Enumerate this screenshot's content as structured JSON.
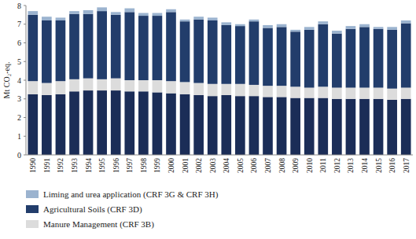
{
  "chart_data": {
    "type": "bar",
    "stacked": true,
    "grid": false,
    "legend": "bottom-left",
    "y_label": "Mt CO₂-eq.",
    "categories": [
      "1990",
      "1991",
      "1992",
      "1993",
      "1994",
      "1995",
      "1996",
      "1997",
      "1998",
      "1999",
      "2000",
      "2001",
      "2002",
      "2003",
      "2004",
      "2005",
      "2006",
      "2007",
      "2008",
      "2009",
      "2010",
      "2011",
      "2012",
      "2013",
      "2014",
      "2015",
      "2016",
      "2017"
    ],
    "ylim": [
      0,
      8
    ],
    "yticks": [
      0,
      1,
      2,
      3,
      4,
      5,
      6,
      7,
      8
    ],
    "series": [
      {
        "color": "#1b2d57",
        "values": [
          3.25,
          3.2,
          3.25,
          3.4,
          3.45,
          3.45,
          3.45,
          3.4,
          3.4,
          3.35,
          3.3,
          3.25,
          3.2,
          3.15,
          3.2,
          3.15,
          3.15,
          3.1,
          3.1,
          3.05,
          3.05,
          3.05,
          3.0,
          3.0,
          3.0,
          3.0,
          2.95,
          3.0
        ]
      },
      {
        "name": "Manure Management (CRF 3B)",
        "color": "#dcdcdc",
        "values": [
          0.7,
          0.65,
          0.7,
          0.65,
          0.65,
          0.6,
          0.65,
          0.6,
          0.6,
          0.65,
          0.65,
          0.65,
          0.65,
          0.65,
          0.6,
          0.65,
          0.6,
          0.6,
          0.6,
          0.6,
          0.55,
          0.6,
          0.6,
          0.6,
          0.6,
          0.6,
          0.6,
          0.6
        ]
      },
      {
        "name": "Agricultural Soils (CRF 3D)",
        "color": "#223d6b",
        "values": [
          3.55,
          3.35,
          3.25,
          3.5,
          3.45,
          3.65,
          3.4,
          3.65,
          3.45,
          3.45,
          3.7,
          3.25,
          3.4,
          3.4,
          3.15,
          3.1,
          3.4,
          3.1,
          3.15,
          2.95,
          3.1,
          3.35,
          2.9,
          3.15,
          3.25,
          3.15,
          3.15,
          3.45
        ]
      },
      {
        "name": "Liming and urea application (CRF 3G & CRF 3H)",
        "color": "#9bb3cf",
        "values": [
          0.2,
          0.2,
          0.15,
          0.15,
          0.2,
          0.2,
          0.15,
          0.2,
          0.15,
          0.15,
          0.15,
          0.1,
          0.15,
          0.15,
          0.15,
          0.1,
          0.1,
          0.15,
          0.15,
          0.1,
          0.15,
          0.15,
          0.15,
          0.15,
          0.15,
          0.1,
          0.15,
          0.15
        ]
      }
    ]
  }
}
